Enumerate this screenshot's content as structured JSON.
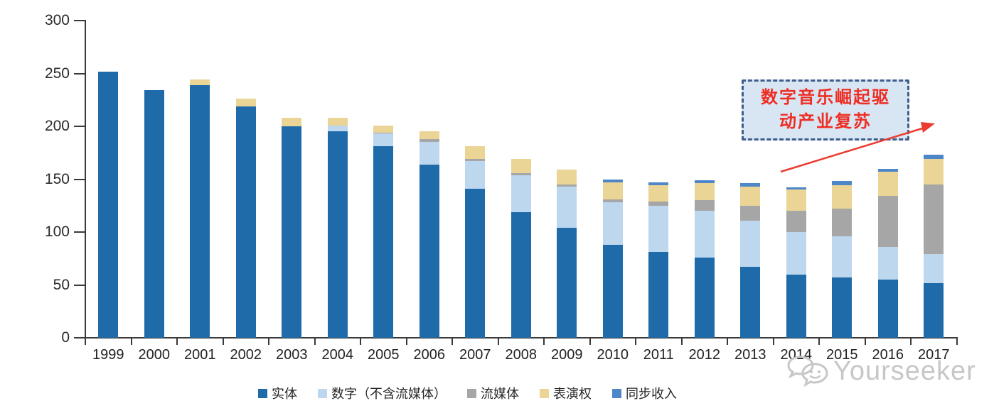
{
  "chart_data": {
    "type": "bar",
    "stacked": true,
    "title": "",
    "xlabel": "",
    "ylabel": "",
    "categories": [
      "1999",
      "2000",
      "2001",
      "2002",
      "2003",
      "2004",
      "2005",
      "2006",
      "2007",
      "2008",
      "2009",
      "2010",
      "2011",
      "2012",
      "2013",
      "2014",
      "2015",
      "2016",
      "2017"
    ],
    "series": [
      {
        "name": "实体",
        "color": "#1f6baa",
        "values": [
          252,
          234,
          239,
          219,
          200,
          195,
          181,
          164,
          141,
          119,
          104,
          88,
          81,
          76,
          67,
          60,
          57,
          55,
          52
        ]
      },
      {
        "name": "数字（不含流媒体）",
        "color": "#bdd7ee",
        "values": [
          0,
          0,
          0,
          0,
          0,
          6,
          12,
          21,
          26,
          35,
          39,
          40,
          44,
          44,
          44,
          40,
          39,
          31,
          27
        ]
      },
      {
        "name": "流媒体",
        "color": "#a6a6a6",
        "values": [
          0,
          0,
          0,
          0,
          0,
          0,
          1,
          3,
          2,
          2,
          2,
          3,
          4,
          10,
          14,
          20,
          26,
          48,
          66
        ]
      },
      {
        "name": "表演权",
        "color": "#ead596",
        "values": [
          0,
          0,
          5,
          7,
          8,
          7,
          7,
          7,
          12,
          13,
          14,
          16,
          15,
          16,
          18,
          20,
          22,
          23,
          24
        ]
      },
      {
        "name": "同步收入",
        "color": "#4d87c9",
        "values": [
          0,
          0,
          0,
          0,
          0,
          0,
          0,
          0,
          0,
          0,
          0,
          3,
          3,
          3,
          3,
          2,
          4,
          3,
          4
        ]
      }
    ],
    "y_axis": {
      "min": 0,
      "max": 300,
      "tick_interval": 50,
      "ticks": [
        300,
        250,
        200,
        150,
        100,
        50,
        0
      ]
    },
    "grid": false,
    "legend_position": "bottom"
  },
  "annotation": {
    "line1": "数字音乐崛起驱",
    "line2": "动产业复苏",
    "full_text": "数字音乐崛起驱动产业复苏",
    "box_fill": "#d8e6f3",
    "border_color": "#3f5d8c",
    "text_color": "#ee2e24",
    "arrow_color": "#ec3b2f"
  },
  "watermark": {
    "text": "Yourseeker",
    "color": "#c7c7c7",
    "logo": "chat-bubbles-icon"
  }
}
